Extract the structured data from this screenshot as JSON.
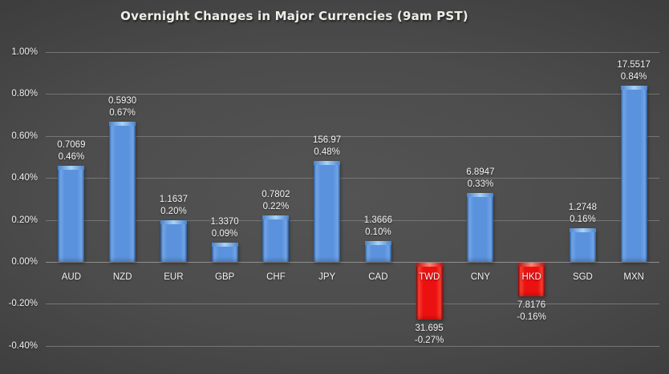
{
  "title": "Overnight Changes in Major Currencies (9am PST)",
  "chart_data": {
    "type": "bar",
    "title": "Overnight Changes in Major Currencies (9am PST)",
    "categories": [
      "AUD",
      "NZD",
      "EUR",
      "GBP",
      "CHF",
      "JPY",
      "CAD",
      "TWD",
      "CNY",
      "HKD",
      "SGD",
      "MXN"
    ],
    "points": [
      {
        "currency": "AUD",
        "rate_label": "0.7069",
        "pct_label": "0.46%",
        "pct_value": 0.46
      },
      {
        "currency": "NZD",
        "rate_label": "0.5930",
        "pct_label": "0.67%",
        "pct_value": 0.67
      },
      {
        "currency": "EUR",
        "rate_label": "1.1637",
        "pct_label": "0.20%",
        "pct_value": 0.2
      },
      {
        "currency": "GBP",
        "rate_label": "1.3370",
        "pct_label": "0.09%",
        "pct_value": 0.09
      },
      {
        "currency": "CHF",
        "rate_label": "0.7802",
        "pct_label": "0.22%",
        "pct_value": 0.22
      },
      {
        "currency": "JPY",
        "rate_label": "156.97",
        "pct_label": "0.48%",
        "pct_value": 0.48
      },
      {
        "currency": "CAD",
        "rate_label": "1.3666",
        "pct_label": "0.10%",
        "pct_value": 0.1
      },
      {
        "currency": "TWD",
        "rate_label": "31.695",
        "pct_label": "-0.27%",
        "pct_value": -0.27
      },
      {
        "currency": "CNY",
        "rate_label": "6.8947",
        "pct_label": "0.33%",
        "pct_value": 0.33
      },
      {
        "currency": "HKD",
        "rate_label": "7.8176",
        "pct_label": "-0.16%",
        "pct_value": -0.16
      },
      {
        "currency": "SGD",
        "rate_label": "1.2748",
        "pct_label": "0.16%",
        "pct_value": 0.16
      },
      {
        "currency": "MXN",
        "rate_label": "17.5517",
        "pct_label": "0.84%",
        "pct_value": 0.84
      }
    ],
    "yticks": [
      "1.00%",
      "0.80%",
      "0.60%",
      "0.40%",
      "0.20%",
      "0.00%",
      "-0.20%",
      "-0.40%"
    ],
    "ytick_values": [
      1.0,
      0.8,
      0.6,
      0.4,
      0.2,
      0.0,
      -0.2,
      -0.4
    ],
    "ylim": [
      -0.4,
      1.0
    ],
    "grid": true,
    "legend": false,
    "xlabel": "",
    "ylabel": "",
    "colors": {
      "positive_bar": "#5b92dd",
      "negative_bar": "#ee1111",
      "label_text": "#f2f2f2",
      "gridline": "#7d7d7d",
      "background": "#3d3d3d"
    }
  }
}
